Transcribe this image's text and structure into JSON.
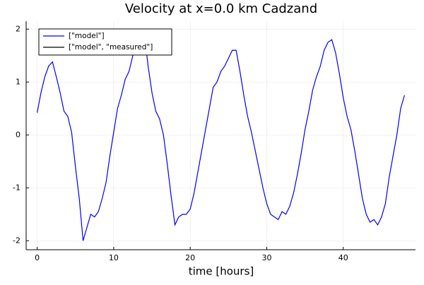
{
  "chart_data": {
    "type": "line",
    "title": "Velocity at x=0.0 km Cadzand",
    "x_label": "time [hours]",
    "x": [
      0,
      0.5,
      1,
      1.5,
      2,
      2.5,
      3,
      3.5,
      4,
      4.5,
      5,
      5.5,
      6,
      6.5,
      7,
      7.5,
      8,
      8.5,
      9,
      9.5,
      10,
      10.5,
      11,
      11.5,
      12,
      12.5,
      13,
      13.5,
      14,
      14.5,
      15,
      15.5,
      16,
      16.5,
      17,
      17.5,
      18,
      18.5,
      19,
      19.5,
      20,
      20.5,
      21,
      21.5,
      22,
      22.5,
      23,
      23.5,
      24,
      24.5,
      25,
      25.5,
      26,
      26.5,
      27,
      27.5,
      28,
      28.5,
      29,
      29.5,
      30,
      30.5,
      31,
      31.5,
      32,
      32.5,
      33,
      33.5,
      34,
      34.5,
      35,
      35.5,
      36,
      36.5,
      37,
      37.5,
      38,
      38.5,
      39,
      39.5,
      40,
      40.5,
      41,
      41.5,
      42,
      42.5,
      43,
      43.5,
      44,
      44.5,
      45,
      45.5,
      46,
      46.5,
      47,
      47.5,
      48
    ],
    "series": [
      {
        "name": "[\"model\"]",
        "color": "#0000ff",
        "values": [
          0.42,
          0.8,
          1.1,
          1.3,
          1.38,
          1.1,
          0.8,
          0.45,
          0.35,
          0.05,
          -0.6,
          -1.2,
          -2.0,
          -1.75,
          -1.5,
          -1.55,
          -1.45,
          -1.2,
          -0.9,
          -0.4,
          0.05,
          0.5,
          0.75,
          1.05,
          1.2,
          1.5,
          1.75,
          1.95,
          1.9,
          1.3,
          0.8,
          0.45,
          0.3,
          0.0,
          -0.55,
          -1.15,
          -1.7,
          -1.55,
          -1.5,
          -1.5,
          -1.4,
          -1.1,
          -0.7,
          -0.3,
          0.1,
          0.5,
          0.9,
          1.0,
          1.2,
          1.3,
          1.45,
          1.6,
          1.6,
          1.2,
          0.75,
          0.35,
          0.05,
          -0.3,
          -0.65,
          -1.0,
          -1.3,
          -1.5,
          -1.55,
          -1.6,
          -1.45,
          -1.5,
          -1.35,
          -1.1,
          -0.75,
          -0.35,
          0.1,
          0.45,
          0.85,
          1.1,
          1.3,
          1.6,
          1.75,
          1.8,
          1.55,
          1.15,
          0.7,
          0.35,
          0.1,
          -0.3,
          -0.75,
          -1.2,
          -1.5,
          -1.65,
          -1.6,
          -1.7,
          -1.55,
          -1.3,
          -0.8,
          -0.4,
          0.0,
          0.5,
          0.75
        ]
      },
      {
        "name": "[\"model\", \"measured\"]",
        "color": "#000000"
      }
    ],
    "xlim": [
      -1.44,
      49.44
    ],
    "xticks": [
      0,
      10,
      20,
      30,
      40
    ],
    "ylim": [
      -2.17,
      2.15
    ],
    "yticks": [
      -2,
      -1,
      0,
      1,
      2
    ],
    "grid": true,
    "legend": "top-left"
  }
}
